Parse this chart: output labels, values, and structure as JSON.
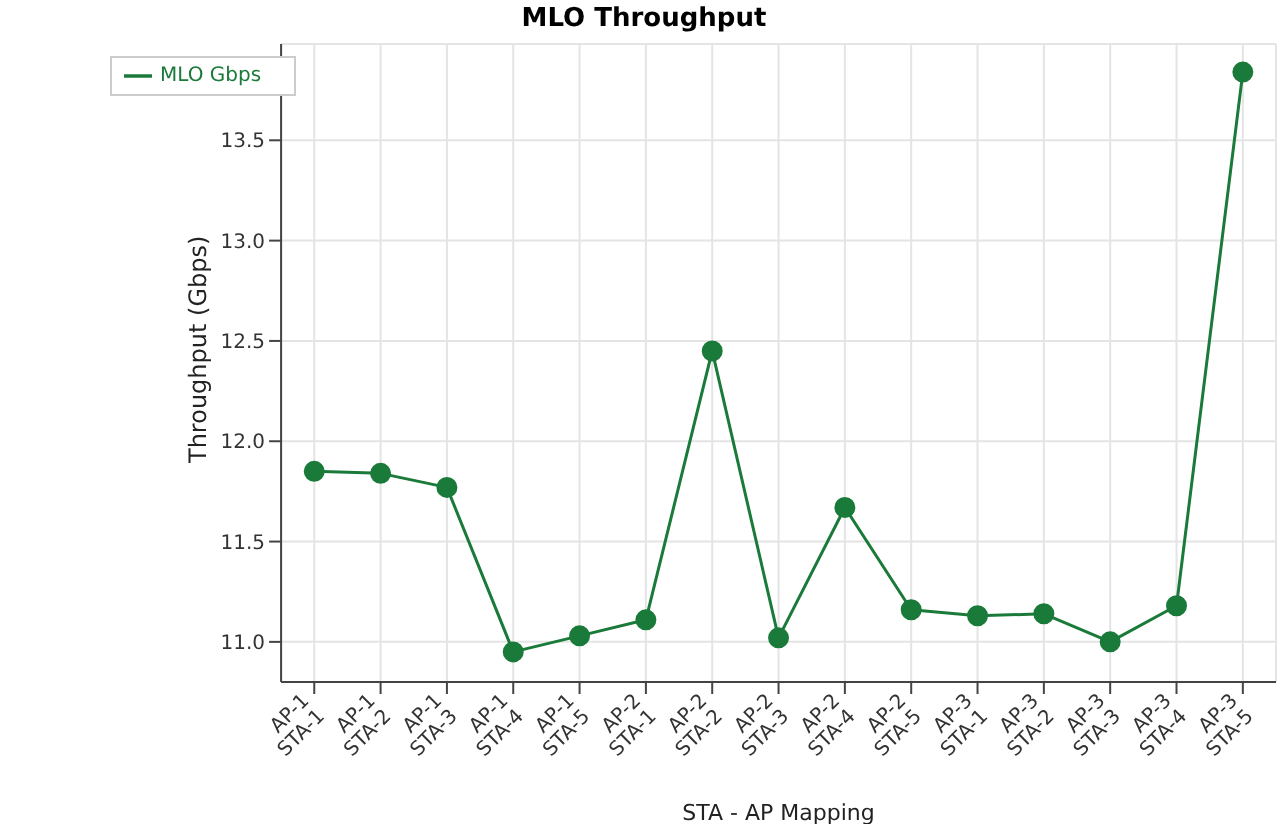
{
  "chart_data": {
    "type": "line",
    "title": "MLO Throughput",
    "xlabel": "STA - AP Mapping",
    "ylabel": "Throughput (Gbps)",
    "categories": [
      "AP-1\nSTA-1",
      "AP-1\nSTA-2",
      "AP-1\nSTA-3",
      "AP-1\nSTA-4",
      "AP-1\nSTA-5",
      "AP-2\nSTA-1",
      "AP-2\nSTA-2",
      "AP-2\nSTA-3",
      "AP-2\nSTA-4",
      "AP-2\nSTA-5",
      "AP-3\nSTA-1",
      "AP-3\nSTA-2",
      "AP-3\nSTA-3",
      "AP-3\nSTA-4",
      "AP-3\nSTA-5"
    ],
    "series": [
      {
        "name": "MLO Gbps",
        "color": "#1a7a3a",
        "values": [
          11.85,
          11.84,
          11.77,
          10.95,
          11.03,
          11.11,
          12.45,
          11.02,
          11.67,
          11.16,
          11.13,
          11.14,
          11.0,
          11.18,
          13.84
        ]
      }
    ],
    "ylim": [
      10.8,
      13.98
    ],
    "yticks": [
      {
        "value": 11.0,
        "label": "11.0"
      },
      {
        "value": 11.5,
        "label": "11.5"
      },
      {
        "value": 12.0,
        "label": "12.0"
      },
      {
        "value": 12.5,
        "label": "12.5"
      },
      {
        "value": 13.0,
        "label": "13.0"
      },
      {
        "value": 13.5,
        "label": "13.5"
      }
    ],
    "grid": true,
    "legend": "top left",
    "marker": "circle",
    "line_style": "solid"
  }
}
